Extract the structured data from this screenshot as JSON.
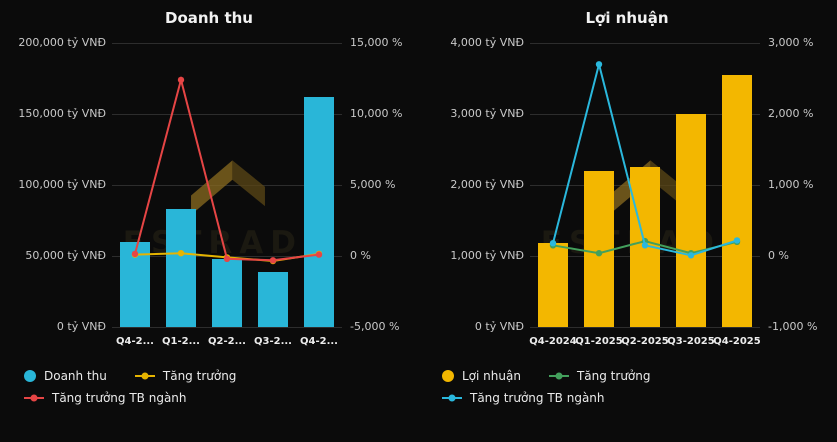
{
  "page": {
    "background": "#0b0b0b"
  },
  "watermark": {
    "text": "FSTRADE",
    "logo_colors": [
      "#8a6b20",
      "#5c4716"
    ]
  },
  "chart_data": [
    {
      "type": "bar",
      "subtype": "bar+line combo, dual y-axis",
      "title": "Doanh thu",
      "categories": [
        "Q4-2...",
        "Q1-2...",
        "Q2-2...",
        "Q3-2...",
        "Q4-2..."
      ],
      "left_axis": {
        "min": 0,
        "max": 200000,
        "unit": "tỷ VNĐ",
        "ticks": [
          "200,000 tỷ VNĐ",
          "150,000 tỷ VNĐ",
          "100,000 tỷ VNĐ",
          "50,000 tỷ VNĐ",
          "0 tỷ VNĐ"
        ]
      },
      "right_axis": {
        "min": -5000,
        "max": 15000,
        "unit": "%",
        "ticks": [
          "15,000 %",
          "10,000 %",
          "5,000 %",
          "0 %",
          "-5,000 %"
        ]
      },
      "bar_series": {
        "name": "Doanh thu",
        "color": "#29b6d8",
        "axis": "left",
        "values": [
          60000,
          83000,
          48000,
          39000,
          162000
        ]
      },
      "line_series": [
        {
          "name": "Tăng trưởng",
          "color": "#e6b400",
          "axis": "right",
          "values": [
            100,
            200,
            -100,
            -350,
            150
          ]
        },
        {
          "name": "Tăng trưởng TB ngành",
          "color": "#e64545",
          "axis": "right",
          "values": [
            150,
            12400,
            -200,
            -300,
            100
          ]
        }
      ],
      "grid": true,
      "legend_position": "bottom-left"
    },
    {
      "type": "bar",
      "subtype": "bar+line combo, dual y-axis",
      "title": "Lợi nhuận",
      "categories": [
        "Q4-2024",
        "Q1-2025",
        "Q2-2025",
        "Q3-2025",
        "Q4-2025"
      ],
      "left_axis": {
        "min": 0,
        "max": 4000,
        "unit": "tỷ VNĐ",
        "ticks": [
          "4,000 tỷ VNĐ",
          "3,000 tỷ VNĐ",
          "2,000 tỷ VNĐ",
          "1,000 tỷ VNĐ",
          "0 tỷ VNĐ"
        ]
      },
      "right_axis": {
        "min": -1000,
        "max": 3000,
        "unit": "%",
        "ticks": [
          "3,000 %",
          "2,000 %",
          "1,000 %",
          "0 %",
          "-1,000 %"
        ]
      },
      "bar_series": {
        "name": "Lợi nhuận",
        "color": "#f3b700",
        "axis": "left",
        "values": [
          1180,
          2200,
          2250,
          3000,
          3550
        ]
      },
      "line_series": [
        {
          "name": "Tăng trưởng",
          "color": "#43a05c",
          "axis": "right",
          "values": [
            150,
            40,
            210,
            40,
            200
          ]
        },
        {
          "name": "Tăng trưởng TB ngành",
          "color": "#2ab8dd",
          "axis": "right",
          "values": [
            180,
            2700,
            150,
            10,
            220
          ]
        }
      ],
      "grid": true,
      "legend_position": "bottom-left"
    }
  ]
}
